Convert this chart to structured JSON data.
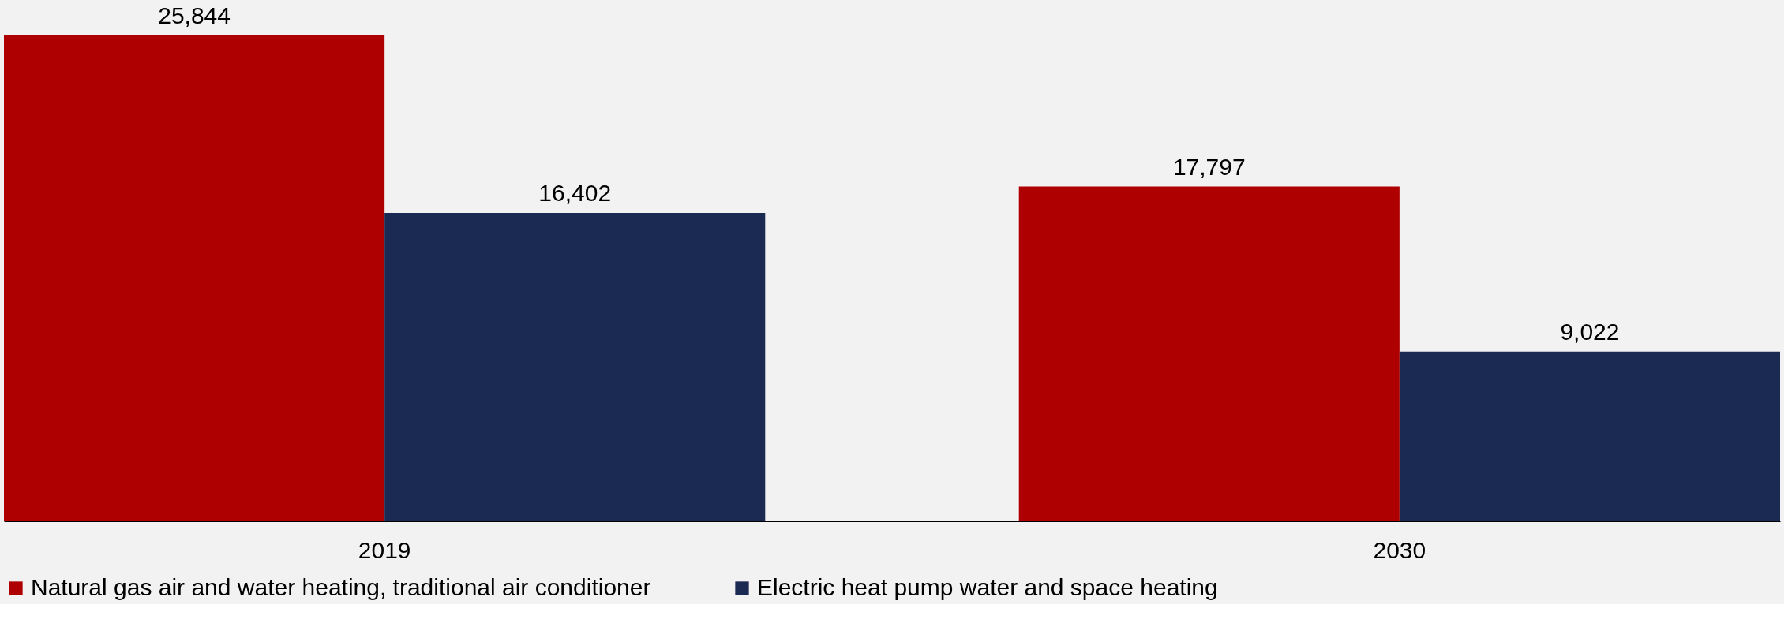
{
  "chart_data": {
    "type": "bar",
    "categories": [
      "2019",
      "2030"
    ],
    "series": [
      {
        "name": "Natural gas air and water heating, traditional air conditioner",
        "color": "#ae0000",
        "values": [
          25844,
          17797
        ],
        "value_labels": [
          "25,844",
          "17,797"
        ]
      },
      {
        "name": "Electric heat pump water and space heating",
        "color": "#1b2a52",
        "values": [
          16402,
          9022
        ],
        "value_labels": [
          "16,402",
          "9,022"
        ]
      }
    ],
    "legend": "bottom",
    "tick_labels": "x",
    "grid": false
  }
}
